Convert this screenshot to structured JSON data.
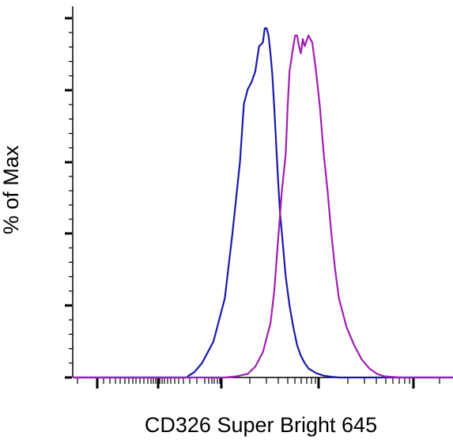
{
  "chart_data": {
    "type": "line",
    "xlabel": "CD326 Super Bright 645",
    "ylabel": "% of Max",
    "x_scale": "biexponential",
    "ylim": [
      0,
      100
    ],
    "grid": false,
    "legend": "none",
    "series": [
      {
        "color": "#1a1aa8",
        "x": [
          0.0,
          0.3,
          0.305,
          0.32,
          0.34,
          0.37,
          0.4,
          0.42,
          0.44,
          0.45,
          0.46,
          0.47,
          0.48,
          0.49,
          0.5,
          0.505,
          0.51,
          0.515,
          0.52,
          0.525,
          0.53,
          0.535,
          0.54,
          0.545,
          0.55,
          0.56,
          0.57,
          0.58,
          0.59,
          0.6,
          0.61,
          0.62,
          0.64,
          0.66,
          0.68,
          0.7,
          0.75,
          0.8,
          1.0
        ],
        "values": [
          0.0,
          0.0,
          0.5,
          1.5,
          4,
          10,
          22,
          40,
          60,
          76,
          80,
          82,
          85,
          92,
          93,
          97,
          97,
          95,
          90,
          84,
          75,
          65,
          55,
          46,
          40,
          28,
          20,
          14,
          9,
          6,
          4,
          2.5,
          1.2,
          0.5,
          0.2,
          0.0,
          0.0,
          0.0,
          0.0
        ]
      },
      {
        "color": "#a01fb0",
        "x": [
          0.0,
          0.4,
          0.43,
          0.46,
          0.48,
          0.5,
          0.52,
          0.53,
          0.54,
          0.55,
          0.56,
          0.565,
          0.57,
          0.58,
          0.585,
          0.59,
          0.595,
          0.6,
          0.605,
          0.61,
          0.62,
          0.63,
          0.64,
          0.65,
          0.66,
          0.67,
          0.68,
          0.69,
          0.7,
          0.72,
          0.74,
          0.76,
          0.78,
          0.8,
          0.82,
          0.86,
          1.0
        ],
        "values": [
          0.0,
          0.0,
          0.3,
          1,
          3,
          7,
          15,
          24,
          38,
          52,
          62,
          75,
          85,
          92,
          95,
          95,
          92,
          90,
          94,
          92,
          95,
          93,
          85,
          75,
          62,
          52,
          40,
          30,
          22,
          14,
          9,
          5,
          2.5,
          1,
          0.3,
          0.0,
          0.0
        ]
      }
    ]
  }
}
